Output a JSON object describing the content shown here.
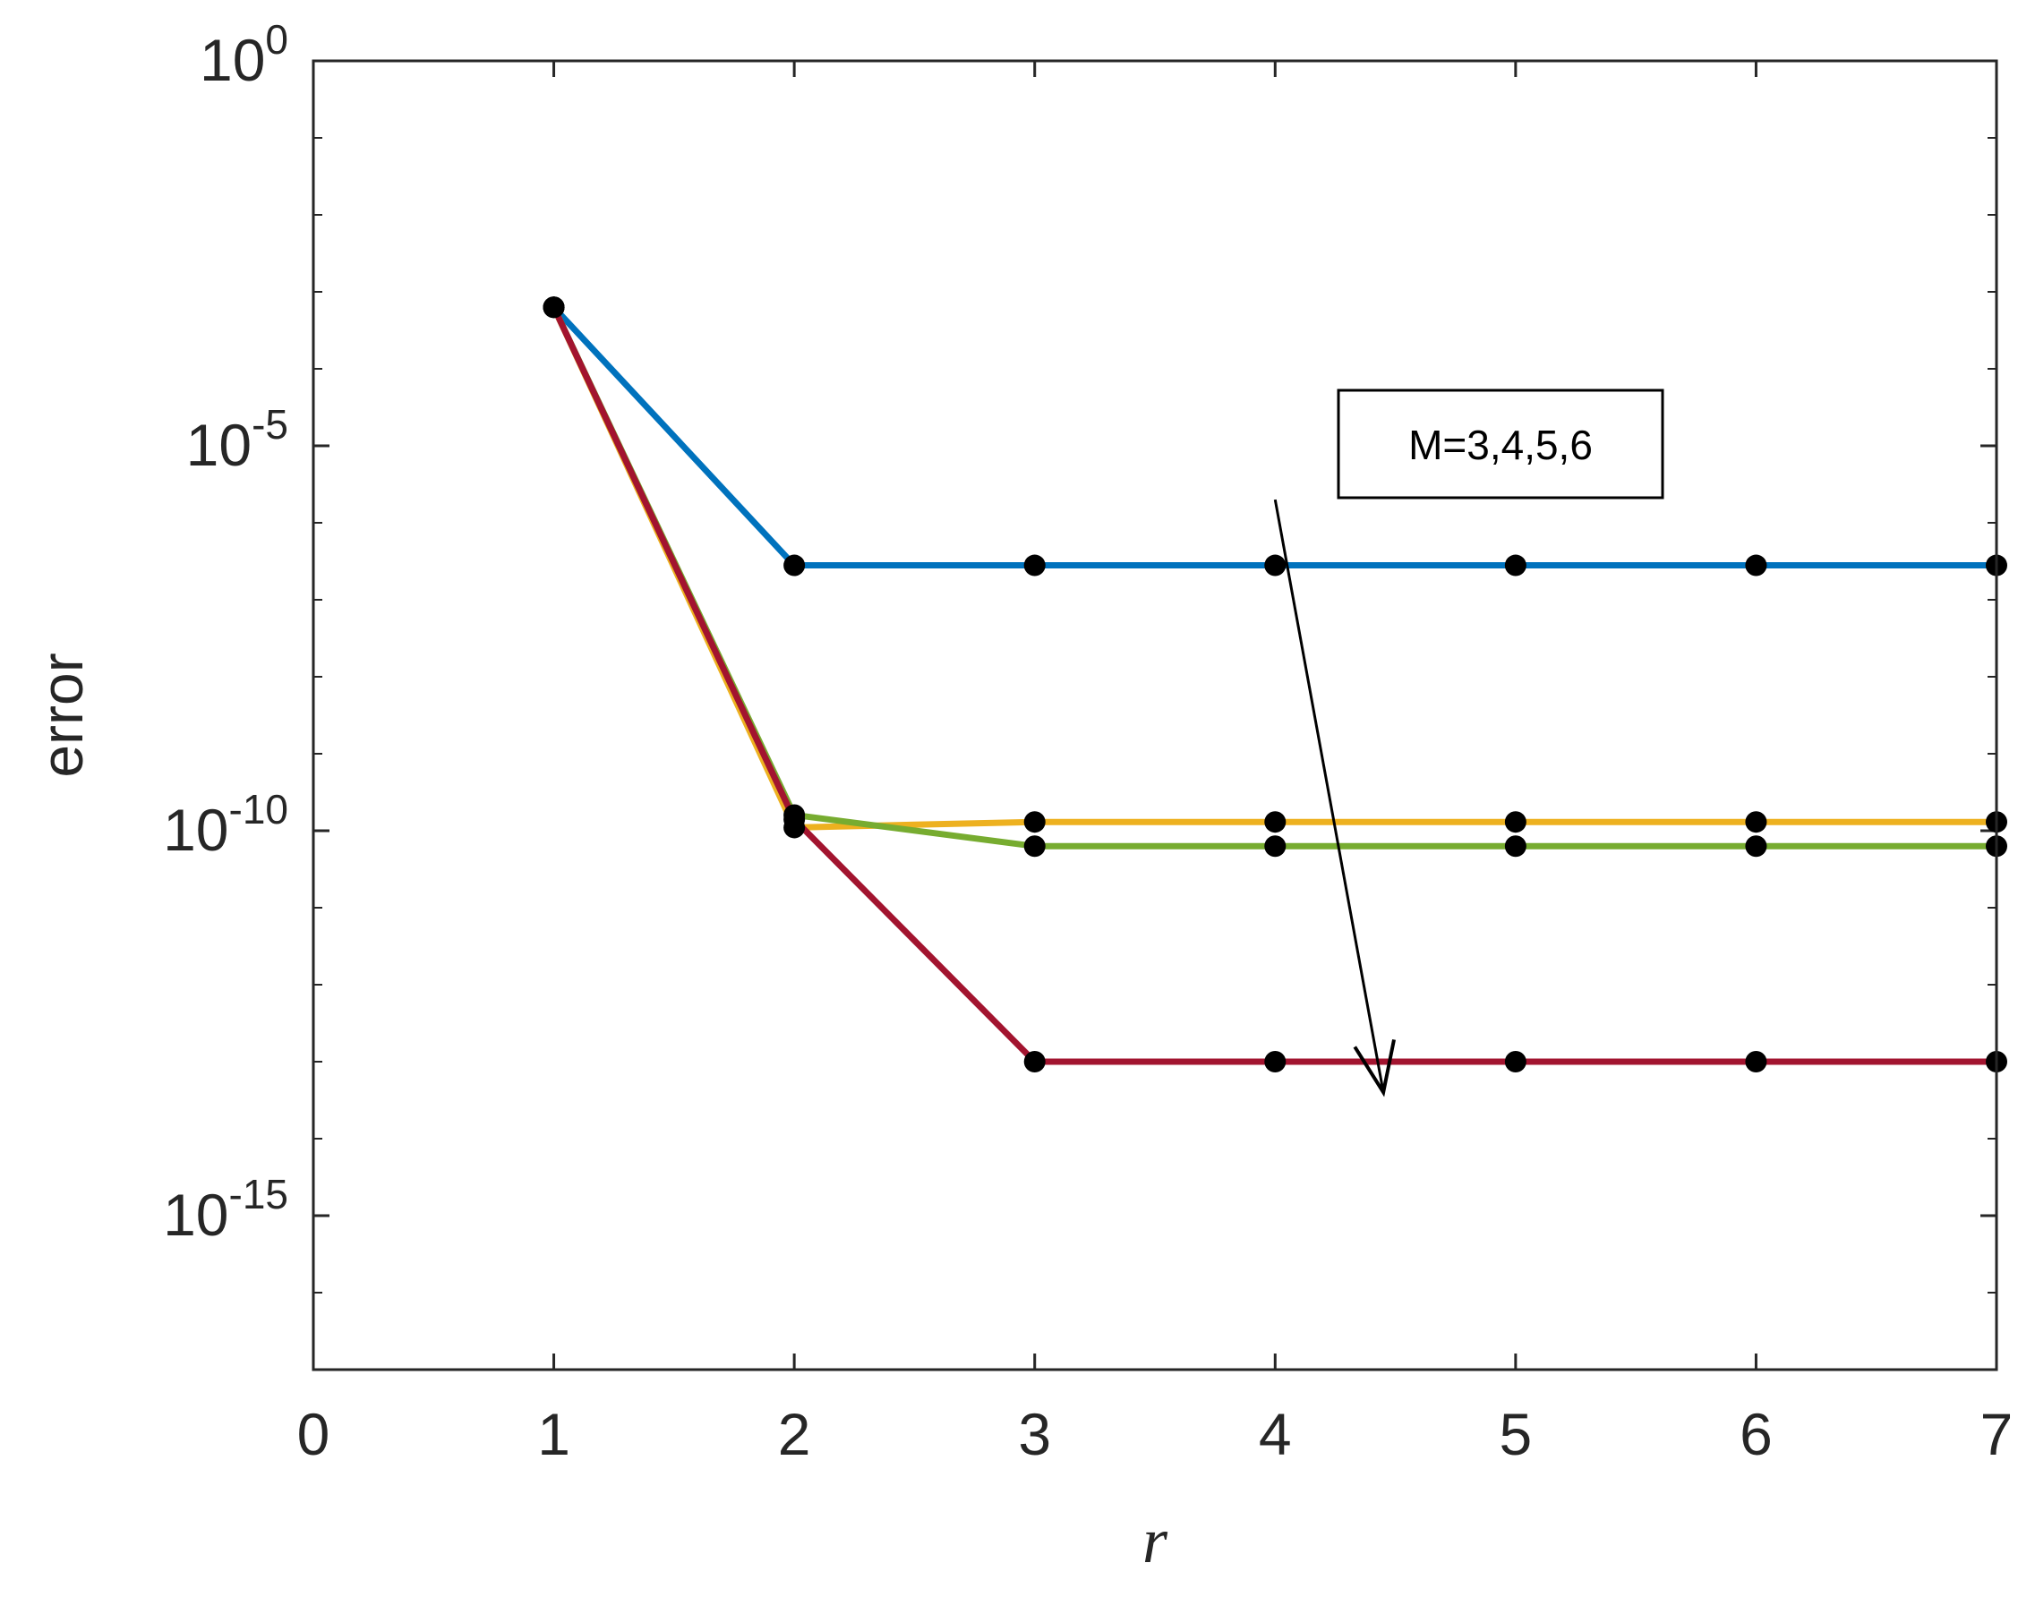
{
  "chart_data": {
    "type": "line",
    "xlabel": "r",
    "ylabel": "error",
    "xlim": [
      0,
      7
    ],
    "ylim_log10": [
      -17,
      0
    ],
    "y_scale": "log",
    "x_ticks": [
      {
        "value": 0,
        "label": "0"
      },
      {
        "value": 1,
        "label": "1"
      },
      {
        "value": 2,
        "label": "2"
      },
      {
        "value": 3,
        "label": "3"
      },
      {
        "value": 4,
        "label": "4"
      },
      {
        "value": 5,
        "label": "5"
      },
      {
        "value": 6,
        "label": "6"
      },
      {
        "value": 7,
        "label": "7"
      }
    ],
    "y_ticks": [
      {
        "exp": 0,
        "base": "10",
        "sup": "0"
      },
      {
        "exp": -5,
        "base": "10",
        "sup": "-5"
      },
      {
        "exp": -10,
        "base": "10",
        "sup": "-10"
      },
      {
        "exp": -15,
        "base": "10",
        "sup": "-15"
      }
    ],
    "y_minor_ticks_exp": [
      -1,
      -2,
      -3,
      -4,
      -6,
      -7,
      -8,
      -9,
      -11,
      -12,
      -13,
      -14,
      -16
    ],
    "x": [
      1,
      2,
      3,
      4,
      5,
      6,
      7
    ],
    "series": [
      {
        "color": "#0072BD",
        "y": [
          0.00063,
          2.8e-07,
          2.8e-07,
          2.8e-07,
          2.8e-07,
          2.8e-07,
          2.8e-07
        ]
      },
      {
        "color": "#EDB120",
        "y": [
          0.00063,
          1.1e-10,
          1.3e-10,
          1.3e-10,
          1.3e-10,
          1.3e-10,
          1.3e-10
        ]
      },
      {
        "color": "#77AC30",
        "y": [
          0.00063,
          1.6e-10,
          6.3e-11,
          6.3e-11,
          6.3e-11,
          6.3e-11,
          6.3e-11
        ]
      },
      {
        "color": "#A2142F",
        "y": [
          0.00063,
          1.4e-10,
          1e-13,
          1e-13,
          1e-13,
          1e-13,
          1e-13
        ]
      }
    ],
    "marker_color": "#000000",
    "annotation": {
      "text": "M=3,4,5,6",
      "arrow_from": [
        4.0,
        2e-06
      ],
      "arrow_to": [
        4.45,
        4e-14
      ]
    },
    "grid": false,
    "legend": "none"
  }
}
